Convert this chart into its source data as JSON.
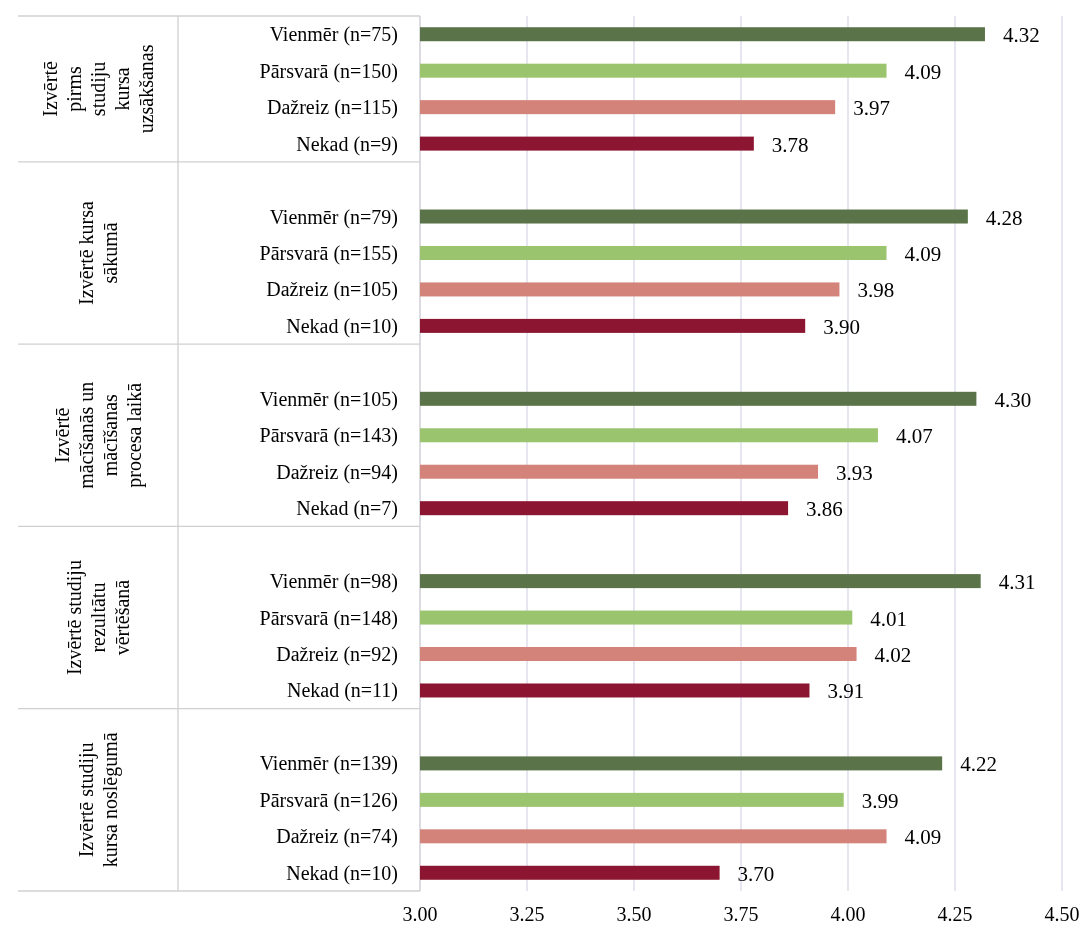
{
  "chart_data": {
    "type": "bar",
    "orientation": "horizontal",
    "categories": [
      "Vienmēr (n=75)",
      "Pārsvarā (n=150)",
      "Dažreiz (n=115)",
      "Nekad (n=9)",
      null,
      "Vienmēr (n=79)",
      "Pārsvarā (n=155)",
      "Dažreiz (n=105)",
      "Nekad (n=10)",
      null,
      "Vienmēr (n=105)",
      "Pārsvarā (n=143)",
      "Dažreiz (n=94)",
      "Nekad (n=7)",
      null,
      "Vienmēr (n=98)",
      "Pārsvarā (n=148)",
      "Dažreiz (n=92)",
      "Nekad (n=11)",
      null,
      "Vienmēr (n=139)",
      "Pārsvarā (n=126)",
      "Dažreiz (n=74)",
      "Nekad (n=10)"
    ],
    "values": [
      4.32,
      4.09,
      3.97,
      3.78,
      null,
      4.28,
      4.09,
      3.98,
      3.9,
      null,
      4.3,
      4.07,
      3.93,
      3.86,
      null,
      4.31,
      4.01,
      4.02,
      3.91,
      null,
      4.22,
      3.99,
      4.09,
      3.7
    ],
    "value_labels": [
      "4.32",
      "4.09",
      "3.97",
      "3.78",
      null,
      "4.28",
      "4.09",
      "3.98",
      "3.90",
      null,
      "4.30",
      "4.07",
      "3.93",
      "3.86",
      null,
      "4.31",
      "4.01",
      "4.02",
      "3.91",
      null,
      "4.22",
      "3.99",
      "4.09",
      "3.70"
    ],
    "colors": [
      "#5b7348",
      "#9bc46e",
      "#d4837a",
      "#8c1631",
      null,
      "#5b7348",
      "#9bc46e",
      "#d4837a",
      "#8c1631",
      null,
      "#5b7348",
      "#9bc46e",
      "#d4837a",
      "#8c1631",
      null,
      "#5b7348",
      "#9bc46e",
      "#d4837a",
      "#8c1631",
      null,
      "#5b7348",
      "#9bc46e",
      "#d4837a",
      "#8c1631"
    ],
    "annotations": [
      "Izvērtē pirms studiju kursa uzsākšanas",
      "Izvērtē kursa sākumā",
      "Izvērtē mācīšanās un mācīšanas procesa laikā",
      "Izvērtē studiju rezultātu vērtēšanā",
      "Izvērtē studiju kursa noslēgumā"
    ],
    "xlim": [
      3,
      4.5
    ],
    "xticks": [
      {
        "value": 3,
        "label": "3.00"
      },
      {
        "value": 3.25,
        "label": "3.25"
      },
      {
        "value": 3.5,
        "label": "3.50"
      },
      {
        "value": 3.75,
        "label": "3.75"
      },
      {
        "value": 4,
        "label": "4.00"
      },
      {
        "value": 4.25,
        "label": "4.25"
      },
      {
        "value": 4.5,
        "label": "4.50"
      }
    ],
    "grid": "x"
  }
}
